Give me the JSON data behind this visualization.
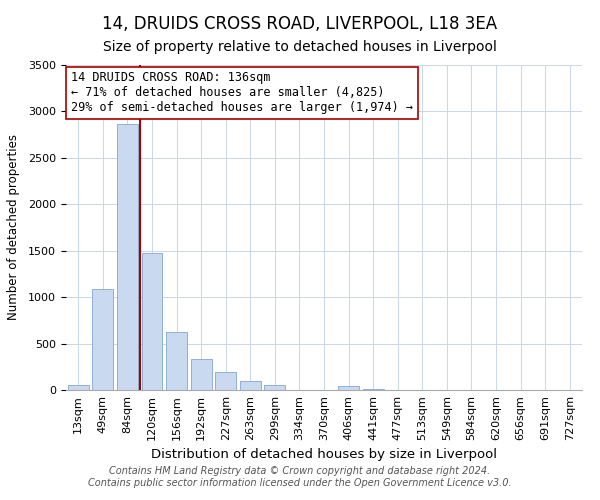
{
  "title": "14, DRUIDS CROSS ROAD, LIVERPOOL, L18 3EA",
  "subtitle": "Size of property relative to detached houses in Liverpool",
  "xlabel": "Distribution of detached houses by size in Liverpool",
  "ylabel": "Number of detached properties",
  "categories": [
    "13sqm",
    "49sqm",
    "84sqm",
    "120sqm",
    "156sqm",
    "192sqm",
    "227sqm",
    "263sqm",
    "299sqm",
    "334sqm",
    "370sqm",
    "406sqm",
    "441sqm",
    "477sqm",
    "513sqm",
    "549sqm",
    "584sqm",
    "620sqm",
    "656sqm",
    "691sqm",
    "727sqm"
  ],
  "values": [
    50,
    1090,
    2870,
    1480,
    630,
    330,
    190,
    95,
    55,
    5,
    5,
    40,
    15,
    5,
    0,
    0,
    5,
    0,
    0,
    0,
    0
  ],
  "bar_color": "#c9d9f0",
  "bar_edge_color": "#7fa8d0",
  "vline_color": "#aa0000",
  "annotation_line1": "14 DRUIDS CROSS ROAD: 136sqm",
  "annotation_line2": "← 71% of detached houses are smaller (4,825)",
  "annotation_line3": "29% of semi-detached houses are larger (1,974) →",
  "ylim": [
    0,
    3500
  ],
  "yticks": [
    0,
    500,
    1000,
    1500,
    2000,
    2500,
    3000,
    3500
  ],
  "footnote_line1": "Contains HM Land Registry data © Crown copyright and database right 2024.",
  "footnote_line2": "Contains public sector information licensed under the Open Government Licence v3.0.",
  "title_fontsize": 12,
  "subtitle_fontsize": 10,
  "xlabel_fontsize": 9.5,
  "ylabel_fontsize": 8.5,
  "tick_fontsize": 8,
  "annotation_fontsize": 8.5,
  "footnote_fontsize": 7,
  "bg_color": "#ffffff",
  "grid_color": "#c8d8e8",
  "vline_x_index": 3
}
